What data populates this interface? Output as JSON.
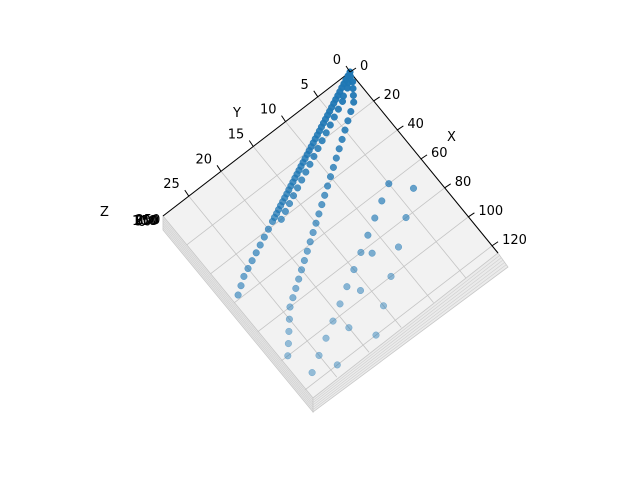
{
  "chart_data": {
    "type": "scatter",
    "projection": "3d",
    "title": "",
    "xlabel": "X",
    "ylabel": "Y",
    "zlabel": "Z",
    "x_ticks": [
      "0",
      "20",
      "40",
      "60",
      "80",
      "100",
      "120"
    ],
    "y_ticks": [
      "0",
      "5",
      "10",
      "15",
      "20",
      "25"
    ],
    "z_ticks": [
      "0",
      "50",
      "100",
      "150",
      "200",
      "250"
    ],
    "xlim": [
      0,
      125
    ],
    "ylim": [
      0,
      29
    ],
    "grid": true,
    "marker_color": "#1f77b4",
    "series": [
      {
        "values": [
          {
            "x": 0,
            "y": 0
          },
          {
            "x": 1,
            "y": 0.5
          },
          {
            "x": 2,
            "y": 1
          },
          {
            "x": 2,
            "y": 0.3
          },
          {
            "x": 3,
            "y": 1.5
          },
          {
            "x": 4,
            "y": 2
          },
          {
            "x": 4,
            "y": 1
          },
          {
            "x": 5,
            "y": 2.5
          },
          {
            "x": 6,
            "y": 3
          },
          {
            "x": 6,
            "y": 1.5
          },
          {
            "x": 7,
            "y": 3.5
          },
          {
            "x": 8,
            "y": 4
          },
          {
            "x": 8,
            "y": 2.5
          },
          {
            "x": 9,
            "y": 4.5
          },
          {
            "x": 10,
            "y": 5
          },
          {
            "x": 10,
            "y": 3
          },
          {
            "x": 11,
            "y": 5.5
          },
          {
            "x": 12,
            "y": 6
          },
          {
            "x": 12,
            "y": 4
          },
          {
            "x": 13,
            "y": 6.5
          },
          {
            "x": 14,
            "y": 7
          },
          {
            "x": 14,
            "y": 5
          },
          {
            "x": 15,
            "y": 7.5
          },
          {
            "x": 16,
            "y": 8
          },
          {
            "x": 16,
            "y": 6
          },
          {
            "x": 17,
            "y": 8.5
          },
          {
            "x": 18,
            "y": 9
          },
          {
            "x": 18,
            "y": 7
          },
          {
            "x": 19,
            "y": 9.5
          },
          {
            "x": 20,
            "y": 10
          },
          {
            "x": 20,
            "y": 8
          },
          {
            "x": 21,
            "y": 10.5
          },
          {
            "x": 22,
            "y": 11
          },
          {
            "x": 22,
            "y": 9
          },
          {
            "x": 23,
            "y": 11.5
          },
          {
            "x": 24,
            "y": 12
          },
          {
            "x": 24,
            "y": 10
          },
          {
            "x": 25,
            "y": 12.5
          },
          {
            "x": 26,
            "y": 13
          },
          {
            "x": 26,
            "y": 11
          },
          {
            "x": 27,
            "y": 13.5
          },
          {
            "x": 28,
            "y": 14
          },
          {
            "x": 28,
            "y": 12
          },
          {
            "x": 29,
            "y": 14.5
          },
          {
            "x": 30,
            "y": 15
          },
          {
            "x": 30,
            "y": 13
          },
          {
            "x": 31,
            "y": 15.5
          },
          {
            "x": 32,
            "y": 16
          },
          {
            "x": 32,
            "y": 14
          },
          {
            "x": 33,
            "y": 16.5
          },
          {
            "x": 34,
            "y": 17
          },
          {
            "x": 34,
            "y": 15
          },
          {
            "x": 35,
            "y": 17.5
          },
          {
            "x": 36,
            "y": 18
          },
          {
            "x": 36,
            "y": 16
          },
          {
            "x": 37,
            "y": 18.5
          },
          {
            "x": 38,
            "y": 19
          },
          {
            "x": 38,
            "y": 17
          },
          {
            "x": 40,
            "y": 20
          },
          {
            "x": 40,
            "y": 18
          },
          {
            "x": 42,
            "y": 21
          },
          {
            "x": 44,
            "y": 22
          },
          {
            "x": 46,
            "y": 23
          },
          {
            "x": 48,
            "y": 24
          },
          {
            "x": 50,
            "y": 25
          },
          {
            "x": 52,
            "y": 26
          },
          {
            "x": 55,
            "y": 27
          },
          {
            "x": 58,
            "y": 28
          },
          {
            "x": 5,
            "y": 0.5
          },
          {
            "x": 8,
            "y": 1
          },
          {
            "x": 11,
            "y": 1.5
          },
          {
            "x": 14,
            "y": 2
          },
          {
            "x": 17,
            "y": 3
          },
          {
            "x": 20,
            "y": 4
          },
          {
            "x": 23,
            "y": 5
          },
          {
            "x": 26,
            "y": 6
          },
          {
            "x": 29,
            "y": 7
          },
          {
            "x": 32,
            "y": 8
          },
          {
            "x": 35,
            "y": 9
          },
          {
            "x": 38,
            "y": 10
          },
          {
            "x": 41,
            "y": 11
          },
          {
            "x": 44,
            "y": 12
          },
          {
            "x": 47,
            "y": 13
          },
          {
            "x": 50,
            "y": 14
          },
          {
            "x": 53,
            "y": 15
          },
          {
            "x": 56,
            "y": 16
          },
          {
            "x": 59,
            "y": 17
          },
          {
            "x": 62,
            "y": 18
          },
          {
            "x": 65,
            "y": 19
          },
          {
            "x": 68,
            "y": 20
          },
          {
            "x": 71,
            "y": 21
          },
          {
            "x": 74,
            "y": 22
          },
          {
            "x": 77,
            "y": 23
          },
          {
            "x": 80,
            "y": 24
          },
          {
            "x": 85,
            "y": 25
          },
          {
            "x": 90,
            "y": 26
          },
          {
            "x": 95,
            "y": 27
          },
          {
            "x": 100,
            "y": 28
          },
          {
            "x": 60,
            "y": 5
          },
          {
            "x": 65,
            "y": 7
          },
          {
            "x": 70,
            "y": 9
          },
          {
            "x": 75,
            "y": 11
          },
          {
            "x": 80,
            "y": 13
          },
          {
            "x": 85,
            "y": 15
          },
          {
            "x": 90,
            "y": 17
          },
          {
            "x": 95,
            "y": 19
          },
          {
            "x": 100,
            "y": 21
          },
          {
            "x": 105,
            "y": 23
          },
          {
            "x": 110,
            "y": 25
          },
          {
            "x": 115,
            "y": 27
          },
          {
            "x": 70,
            "y": 3
          },
          {
            "x": 80,
            "y": 6
          },
          {
            "x": 90,
            "y": 9
          },
          {
            "x": 100,
            "y": 12
          },
          {
            "x": 110,
            "y": 15
          },
          {
            "x": 120,
            "y": 18
          },
          {
            "x": 120,
            "y": 24
          },
          {
            "x": 108,
            "y": 20
          },
          {
            "x": 96,
            "y": 16
          },
          {
            "x": 84,
            "y": 12
          }
        ]
      }
    ]
  }
}
